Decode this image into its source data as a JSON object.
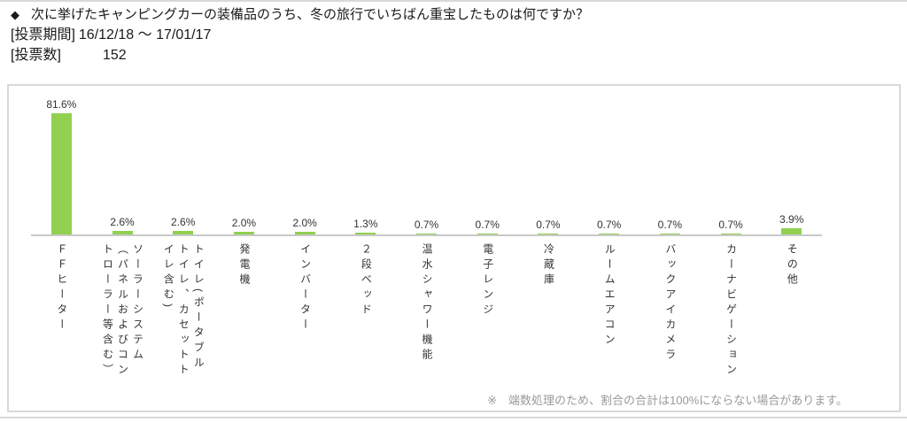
{
  "header": {
    "bullet": "◆",
    "title": "次に挙げたキャンピングカーの装備品のうち、冬の旅行でいちばん重宝したものは何ですか？",
    "vote_period_label": "[投票期間]",
    "vote_period_value": "16/12/18 ～ 17/01/17",
    "vote_count_label": "[投票数]",
    "vote_count_value": "152"
  },
  "chart_data": {
    "type": "bar",
    "title": "次に挙げたキャンピングカーの装備品のうち、冬の旅行でいちばん重宝したものは何ですか？",
    "categories": [
      "ＦＦヒーター",
      "ソーラーシステム\n（パネルおよびコン\nトローラー等含む）",
      "トイレ(ポータブル\nトイレ、カセットト\nイレ含む)",
      "発電機",
      "インバーター",
      "２段ベッド",
      "温水シャワー機能",
      "電子レンジ",
      "冷蔵庫",
      "ルームエアコン",
      "バックアイカメラ",
      "カーナビゲーション",
      "その他"
    ],
    "values": [
      81.6,
      2.6,
      2.6,
      2.0,
      2.0,
      1.3,
      0.7,
      0.7,
      0.7,
      0.7,
      0.7,
      0.7,
      3.9
    ],
    "value_labels": [
      "81.6%",
      "2.6%",
      "2.6%",
      "2.0%",
      "2.0%",
      "1.3%",
      "0.7%",
      "0.7%",
      "0.7%",
      "0.7%",
      "0.7%",
      "0.7%",
      "3.9%"
    ],
    "bar_color": "#92d050",
    "xlabel": "",
    "ylabel": "",
    "ylim": [
      0,
      100
    ],
    "grid": false,
    "legend": "none"
  },
  "footer": {
    "note": "※　端数処理のため、割合の合計は100%にならない場合があります。"
  }
}
